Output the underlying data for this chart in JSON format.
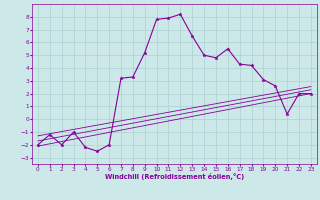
{
  "xlabel": "Windchill (Refroidissement éolien,°C)",
  "xlim": [
    -0.5,
    23.5
  ],
  "ylim": [
    -3.5,
    9.0
  ],
  "xticks": [
    0,
    1,
    2,
    3,
    4,
    5,
    6,
    7,
    8,
    9,
    10,
    11,
    12,
    13,
    14,
    15,
    16,
    17,
    18,
    19,
    20,
    21,
    22,
    23
  ],
  "yticks": [
    -3,
    -2,
    -1,
    0,
    1,
    2,
    3,
    4,
    5,
    6,
    7,
    8
  ],
  "bg_color": "#cce8e8",
  "grid_color": "#aad0d0",
  "line_color": "#880099",
  "main_line_x": [
    0,
    1,
    2,
    3,
    4,
    5,
    6,
    7,
    8,
    9,
    10,
    11,
    12,
    13,
    14,
    15,
    16,
    17,
    18,
    19,
    20,
    21,
    22,
    23
  ],
  "main_line_y": [
    -2.0,
    -1.2,
    -2.0,
    -1.0,
    -2.2,
    -2.5,
    -2.0,
    3.2,
    3.3,
    5.2,
    7.8,
    7.9,
    8.2,
    6.5,
    5.0,
    4.8,
    5.5,
    4.3,
    4.2,
    3.1,
    2.6,
    0.4,
    2.0,
    2.0
  ],
  "line2_x": [
    0,
    23
  ],
  "line2_y": [
    -2.1,
    2.0
  ],
  "line3_x": [
    0,
    23
  ],
  "line3_y": [
    -1.7,
    2.3
  ],
  "line4_x": [
    0,
    23
  ],
  "line4_y": [
    -1.3,
    2.55
  ]
}
